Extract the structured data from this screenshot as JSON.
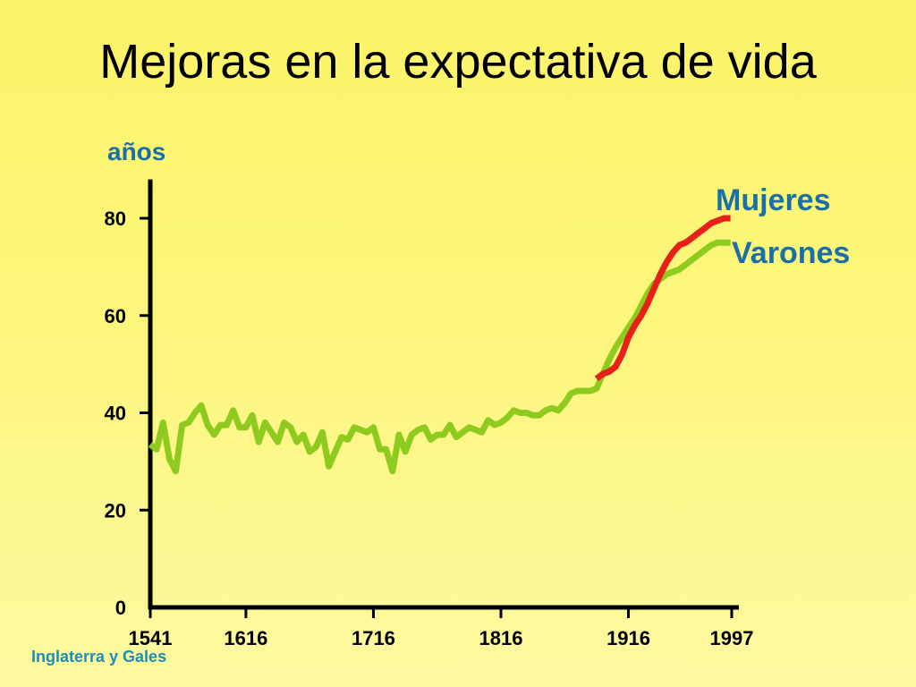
{
  "title": "Mejoras en la expectativa de vida",
  "footnote": "Inglaterra y Gales",
  "chart_data": {
    "type": "line",
    "ylabel": "años",
    "xlabel": "",
    "ylim": [
      0,
      88
    ],
    "y_ticks": [
      0,
      20,
      40,
      60,
      80
    ],
    "x_ticks": [
      1541,
      1616,
      1716,
      1816,
      1916,
      1997
    ],
    "xlim": [
      1541,
      1997
    ],
    "grid": false,
    "legend": "direct labels at right end of lines",
    "series": [
      {
        "name": "Mujeres",
        "color": "#e8201a",
        "x": [
          1891,
          1896,
          1901,
          1906,
          1911,
          1916,
          1921,
          1926,
          1931,
          1936,
          1941,
          1946,
          1951,
          1956,
          1961,
          1966,
          1971,
          1976,
          1981,
          1986,
          1991,
          1996
        ],
        "y": [
          47,
          48,
          48.5,
          49.5,
          52,
          55.5,
          58,
          60,
          62.5,
          65.5,
          68.5,
          71,
          73,
          74.5,
          75,
          76,
          77,
          78,
          79,
          79.5,
          80,
          80
        ]
      },
      {
        "name": "Varones",
        "color": "#8fcb1e",
        "x": [
          1541,
          1546,
          1551,
          1556,
          1561,
          1566,
          1571,
          1576,
          1581,
          1586,
          1591,
          1596,
          1601,
          1606,
          1611,
          1616,
          1621,
          1626,
          1631,
          1636,
          1641,
          1646,
          1651,
          1656,
          1661,
          1666,
          1671,
          1676,
          1681,
          1686,
          1691,
          1696,
          1701,
          1706,
          1711,
          1716,
          1721,
          1726,
          1731,
          1736,
          1741,
          1746,
          1751,
          1756,
          1761,
          1766,
          1771,
          1776,
          1781,
          1786,
          1791,
          1796,
          1801,
          1806,
          1811,
          1816,
          1821,
          1826,
          1831,
          1836,
          1841,
          1846,
          1851,
          1856,
          1861,
          1866,
          1871,
          1876,
          1881,
          1886,
          1891,
          1896,
          1901,
          1906,
          1911,
          1916,
          1921,
          1926,
          1931,
          1936,
          1941,
          1946,
          1951,
          1956,
          1961,
          1966,
          1971,
          1976,
          1981,
          1986,
          1991,
          1996
        ],
        "y": [
          33.5,
          32.5,
          38,
          30.5,
          28,
          37.5,
          38,
          40,
          41.5,
          37.5,
          35.5,
          37.5,
          37.5,
          40.5,
          37,
          37,
          39.5,
          34,
          38,
          36,
          34,
          38,
          37,
          34,
          35.5,
          32,
          33,
          36,
          29,
          32,
          35,
          34.5,
          37,
          36.5,
          36,
          37,
          32.5,
          32.5,
          28,
          35.5,
          32,
          35.5,
          36.5,
          37,
          34.5,
          35.5,
          35.5,
          37.5,
          35,
          36,
          37,
          36.5,
          36,
          38.5,
          37.5,
          38,
          39,
          40.5,
          40,
          40,
          39.5,
          39.5,
          40.5,
          41,
          40.5,
          42,
          44,
          44.5,
          44.5,
          44.5,
          45,
          48,
          51,
          53.5,
          55.5,
          57.5,
          59.5,
          62,
          64.5,
          66.5,
          67.5,
          68.5,
          69,
          69.5,
          70.5,
          71.5,
          72.5,
          73.5,
          74.5,
          75,
          75,
          75
        ]
      }
    ]
  }
}
